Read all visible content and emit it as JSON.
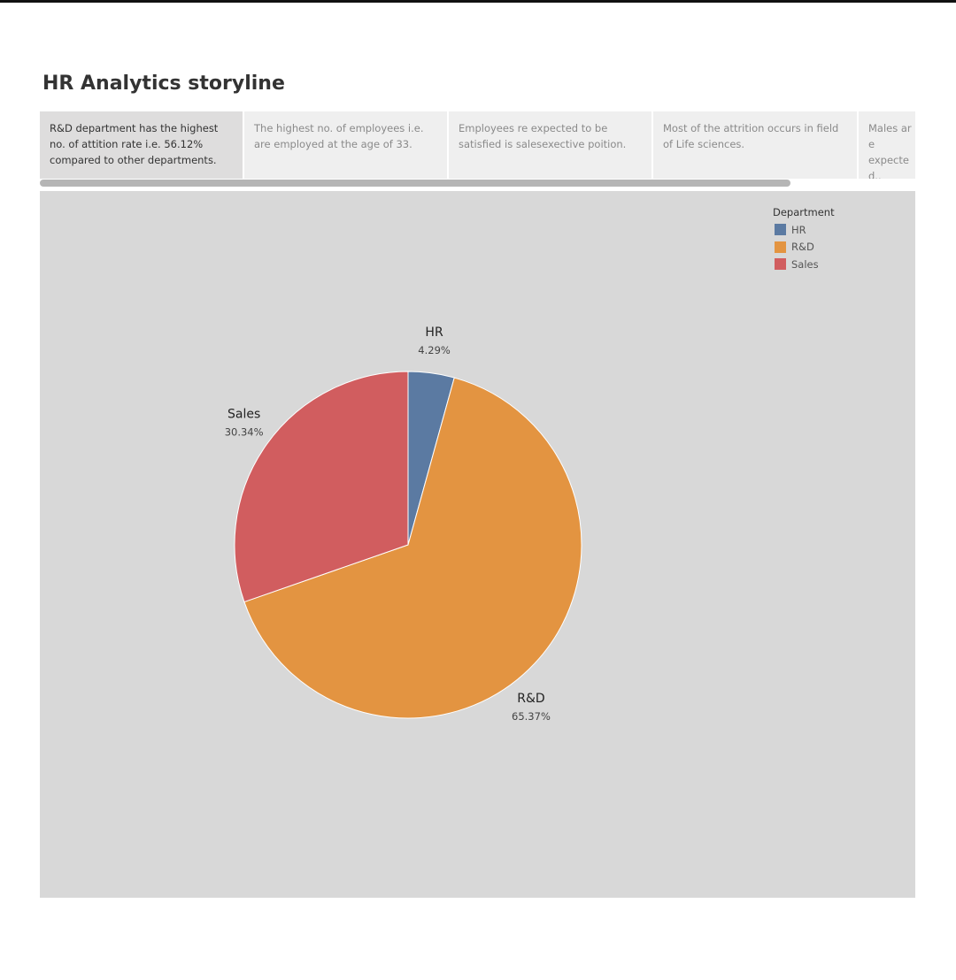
{
  "story": {
    "title": "HR Analytics storyline",
    "points": [
      {
        "caption": "R&D department has the highest no. of attition rate i.e. 56.12% compared to other departments.",
        "active": true
      },
      {
        "caption": "The highest no. of employees i.e. are employed at the age of 33.",
        "active": false
      },
      {
        "caption": "Employees re expected to be satisfied is salesexective poition.",
        "active": false
      },
      {
        "caption": "Most of the attrition occurs in field of Life sciences.",
        "active": false
      },
      {
        "caption": "Males ar e expecte d..",
        "active": false
      }
    ]
  },
  "chart_data": {
    "type": "pie",
    "title": "",
    "legend": {
      "title": "Department",
      "position": "top-right",
      "entries": [
        "HR",
        "R&D",
        "Sales"
      ]
    },
    "slices": [
      {
        "label": "HR",
        "value": 4.29,
        "display": "4.29%",
        "color": "#5b7aa2"
      },
      {
        "label": "R&D",
        "value": 65.37,
        "display": "65.37%",
        "color": "#e39441"
      },
      {
        "label": "Sales",
        "value": 30.34,
        "display": "30.34%",
        "color": "#d15d5f"
      }
    ],
    "start_angle_deg": 0,
    "direction": "clockwise"
  },
  "colors": {
    "panel_background": "#d8d8d8",
    "active_story_point": "#dedddd",
    "inactive_story_point": "#efefef"
  }
}
